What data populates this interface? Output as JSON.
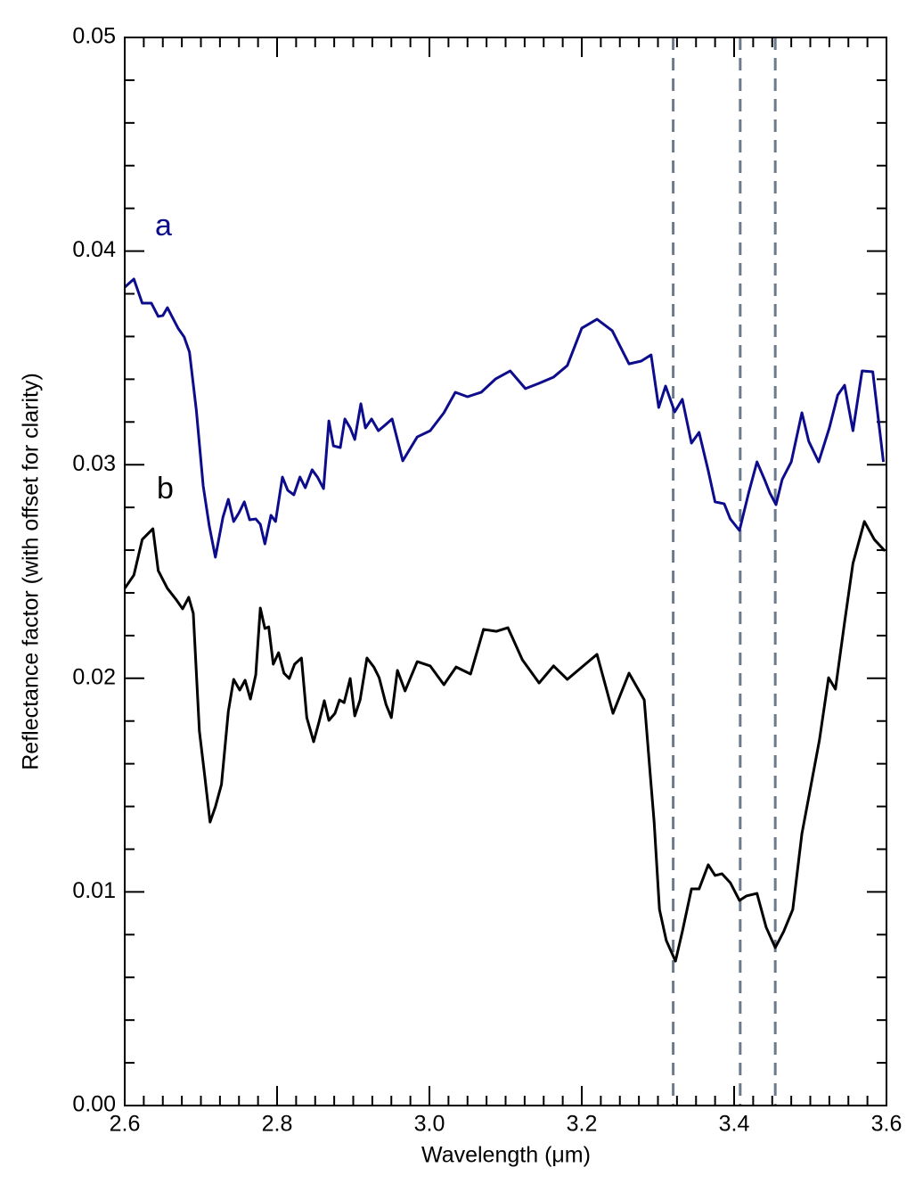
{
  "chart_data": {
    "type": "line",
    "xlabel": "Wavelength (μm)",
    "ylabel": "Reflectance factor (with offset for clarity)",
    "xlim": [
      2.6,
      3.6
    ],
    "ylim": [
      0,
      0.05
    ],
    "xticks": [
      2.6,
      2.8,
      {
        "value": 3.0,
        "label": "3.0"
      },
      3.2,
      3.4,
      3.6
    ],
    "yticks": [
      {
        "value": 0,
        "label": "0.00"
      },
      0.01,
      0.02,
      0.03,
      0.04,
      0.05
    ],
    "xminorticks": [
      2.625,
      2.65,
      2.675,
      2.7,
      2.725,
      2.75,
      2.775,
      2.825,
      2.85,
      2.875,
      2.9,
      2.925,
      2.95,
      2.975,
      3.025,
      3.05,
      3.075,
      3.1,
      3.125,
      3.15,
      3.175,
      3.225,
      3.25,
      3.275,
      3.3,
      3.325,
      3.35,
      3.375,
      3.425,
      3.45,
      3.475,
      3.5,
      3.525,
      3.55,
      3.575
    ],
    "yminorticks": [
      0.002,
      0.004,
      0.006,
      0.008,
      0.012,
      0.014,
      0.016,
      0.018,
      0.022,
      0.024,
      0.026,
      0.028,
      0.032,
      0.034,
      0.036,
      0.038,
      0.042,
      0.044,
      0.046,
      0.048
    ],
    "vlines": [
      3.32,
      3.408,
      3.454
    ],
    "vline_color": "#6b7a8c",
    "series": [
      {
        "name": "a",
        "color": "#0c0c8c",
        "x": [
          2.6,
          2.612,
          2.623,
          2.635,
          2.644,
          2.65,
          2.656,
          2.662,
          2.67,
          2.678,
          2.685,
          2.694,
          2.703,
          2.711,
          2.719,
          2.729,
          2.736,
          2.743,
          2.75,
          2.757,
          2.764,
          2.772,
          2.778,
          2.784,
          2.792,
          2.798,
          2.807,
          2.814,
          2.822,
          2.83,
          2.837,
          2.846,
          2.853,
          2.861,
          2.868,
          2.874,
          2.883,
          2.889,
          2.896,
          2.902,
          2.91,
          2.916,
          2.924,
          2.933,
          2.943,
          2.951,
          2.965,
          2.984,
          3.001,
          3.019,
          3.034,
          3.05,
          3.068,
          3.087,
          3.106,
          3.126,
          3.144,
          3.163,
          3.181,
          3.2,
          3.22,
          3.24,
          3.262,
          3.278,
          3.291,
          3.301,
          3.31,
          3.322,
          3.332,
          3.344,
          3.354,
          3.366,
          3.375,
          3.387,
          3.395,
          3.407,
          3.419,
          3.43,
          3.44,
          3.447,
          3.455,
          3.463,
          3.475,
          3.489,
          3.498,
          3.511,
          3.525,
          3.536,
          3.545,
          3.556,
          3.568,
          3.582,
          3.596
        ],
        "values": [
          0.03831,
          0.03869,
          0.03756,
          0.03756,
          0.03694,
          0.03698,
          0.03735,
          0.03694,
          0.03639,
          0.03598,
          0.03527,
          0.03255,
          0.02901,
          0.02713,
          0.02567,
          0.02755,
          0.02838,
          0.02734,
          0.02775,
          0.02826,
          0.02742,
          0.02746,
          0.02721,
          0.02629,
          0.02763,
          0.02734,
          0.02942,
          0.0288,
          0.02859,
          0.02942,
          0.02892,
          0.02976,
          0.02942,
          0.02888,
          0.03205,
          0.03088,
          0.0308,
          0.03214,
          0.03172,
          0.03118,
          0.03285,
          0.03172,
          0.03214,
          0.03159,
          0.03189,
          0.03214,
          0.03018,
          0.0313,
          0.03159,
          0.03243,
          0.03339,
          0.03318,
          0.03339,
          0.03402,
          0.03439,
          0.03356,
          0.03381,
          0.0341,
          0.03464,
          0.03639,
          0.03681,
          0.03627,
          0.03472,
          0.03485,
          0.03514,
          0.03268,
          0.03368,
          0.03247,
          0.03306,
          0.03101,
          0.03151,
          0.02972,
          0.02826,
          0.02817,
          0.02746,
          0.02692,
          0.02867,
          0.03013,
          0.0293,
          0.02867,
          0.02813,
          0.0293,
          0.03013,
          0.03243,
          0.03109,
          0.03013,
          0.03172,
          0.03326,
          0.03372,
          0.03159,
          0.03439,
          0.03435,
          0.03013
        ]
      },
      {
        "name": "b",
        "color": "#000000",
        "x": [
          2.6,
          2.612,
          2.623,
          2.637,
          2.644,
          2.656,
          2.667,
          2.676,
          2.684,
          2.69,
          2.698,
          2.705,
          2.712,
          2.719,
          2.727,
          2.736,
          2.743,
          2.751,
          2.758,
          2.765,
          2.772,
          2.778,
          2.784,
          2.789,
          2.795,
          2.802,
          2.809,
          2.816,
          2.823,
          2.832,
          2.839,
          2.848,
          2.855,
          2.862,
          2.868,
          2.876,
          2.882,
          2.888,
          2.896,
          2.902,
          2.909,
          2.918,
          2.927,
          2.934,
          2.943,
          2.95,
          2.958,
          2.968,
          2.984,
          3.001,
          3.019,
          3.035,
          3.054,
          3.071,
          3.088,
          3.103,
          3.122,
          3.144,
          3.163,
          3.181,
          3.202,
          3.22,
          3.241,
          3.262,
          3.282,
          3.29,
          3.295,
          3.302,
          3.311,
          3.323,
          3.332,
          3.344,
          3.354,
          3.366,
          3.375,
          3.384,
          3.395,
          3.407,
          3.416,
          3.43,
          3.442,
          3.454,
          3.465,
          3.477,
          3.489,
          3.5,
          3.512,
          3.524,
          3.533,
          3.545,
          3.556,
          3.571,
          3.584,
          3.598
        ],
        "values": [
          0.02421,
          0.02483,
          0.0265,
          0.027,
          0.02504,
          0.02421,
          0.02371,
          0.02325,
          0.02379,
          0.02304,
          0.01753,
          0.01544,
          0.01327,
          0.01398,
          0.01503,
          0.01845,
          0.01995,
          0.01945,
          0.01991,
          0.01903,
          0.02016,
          0.02329,
          0.02233,
          0.02241,
          0.02066,
          0.0212,
          0.02024,
          0.01999,
          0.02066,
          0.02095,
          0.01816,
          0.01703,
          0.01795,
          0.01895,
          0.01803,
          0.01836,
          0.01899,
          0.01886,
          0.01999,
          0.01824,
          0.01899,
          0.02095,
          0.02053,
          0.02003,
          0.01878,
          0.01816,
          0.02037,
          0.01941,
          0.02078,
          0.02058,
          0.0197,
          0.02053,
          0.0202,
          0.02229,
          0.0222,
          0.02237,
          0.02087,
          0.01978,
          0.02058,
          0.01995,
          0.02058,
          0.02112,
          0.01836,
          0.02024,
          0.01899,
          0.01544,
          0.01327,
          0.00918,
          0.00772,
          0.00676,
          0.00814,
          0.01014,
          0.01014,
          0.01127,
          0.01077,
          0.01085,
          0.01043,
          0.0096,
          0.00981,
          0.00993,
          0.00835,
          0.00739,
          0.00814,
          0.00918,
          0.01273,
          0.01482,
          0.01711,
          0.02003,
          0.01949,
          0.02262,
          0.02538,
          0.02734,
          0.0265,
          0.02596
        ]
      }
    ]
  }
}
